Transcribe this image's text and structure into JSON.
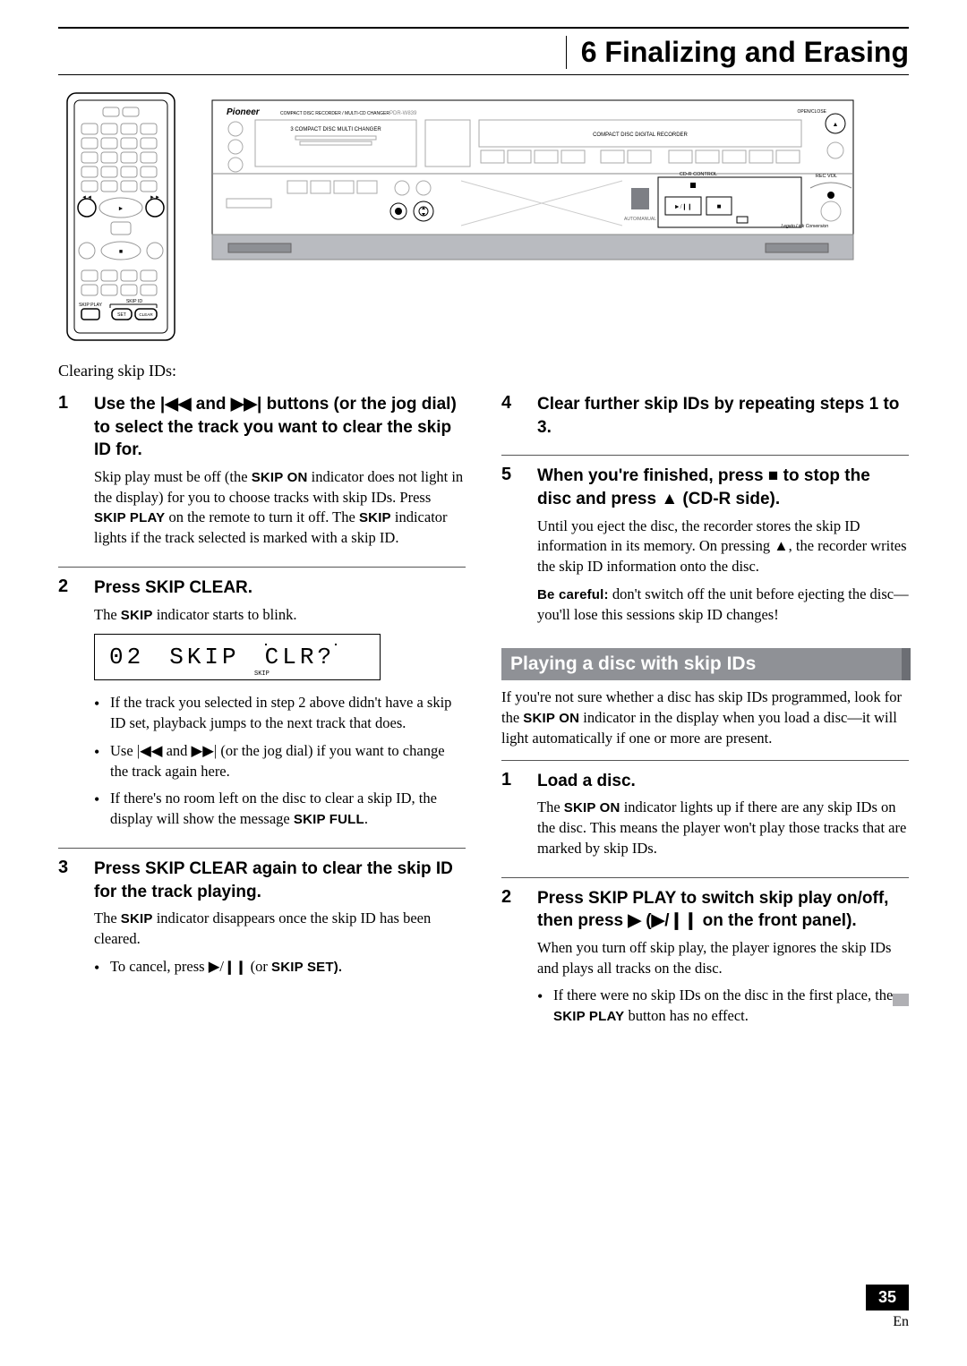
{
  "chapter": {
    "number": "6",
    "title": "Finalizing and Erasing"
  },
  "intro": "Clearing skip IDs:",
  "remote_labels": {
    "skip_play": "SKIP PLAY",
    "skip_id": "SKIP ID",
    "set": "SET",
    "clear": "CLEAR",
    "prev": "◄◄",
    "next": "►►"
  },
  "panel_labels": {
    "brand": "Pioneer",
    "subtitle": "COMPACT DISC RECORDER / MULTI-CD CHANGER",
    "model": "PDR-W839",
    "changer": "3 COMPACT DISC MULTI CHANGER",
    "recorder": "COMPACT DISC DIGITAL RECORDER",
    "open_close": "OPEN/CLOSE",
    "cdr_control": "CD-R CONTROL",
    "rec_vol": "REC VOL",
    "legato": "Legato Link Conversion",
    "auto": "AUTO/MANUAL",
    "play": "►/❙❙",
    "stop": "■"
  },
  "lcd": {
    "track": "02",
    "label": "SKIP",
    "action": "CLR?",
    "skip_ind": "SKIP"
  },
  "left_steps": [
    {
      "num": "1",
      "title_parts": [
        "Use the ",
        "|◀◀",
        " and ",
        "▶▶|",
        " buttons (or the jog dial) to select  the track you want to clear the skip ID for."
      ],
      "body": [
        "Skip play must be off (the <b>SKIP ON</b> indicator does not light in the display) for you to choose tracks with skip IDs. Press <b>SKIP PLAY</b> on the remote to turn it off.  The <b>SKIP</b> indicator lights if the track selected is marked with a skip ID."
      ]
    },
    {
      "num": "2",
      "title_parts": [
        "Press SKIP CLEAR."
      ],
      "body": [
        "The <b>SKIP</b> indicator starts to blink."
      ],
      "lcd": true,
      "bullets": [
        "If the track you selected in step 2 above didn't have a skip ID set, playback jumps to the next track that does.",
        "Use |◀◀ and ▶▶| (or the jog dial) if you want to change the track again here.",
        "If there's no room left on the disc to clear a skip ID, the display will show the message <b>SKIP FULL</b>."
      ]
    },
    {
      "num": "3",
      "title_parts": [
        "Press SKIP CLEAR again to clear the skip ID for the track playing."
      ],
      "body": [
        "The <b>SKIP</b> indicator disappears once the skip ID has been cleared."
      ],
      "bullets": [
        "To cancel, press ▶/<b>❙❙</b> (or <b>SKIP SET).</b>"
      ]
    }
  ],
  "right_steps_top": [
    {
      "num": "4",
      "title_parts": [
        "Clear further skip IDs by repeating steps 1 to 3."
      ]
    },
    {
      "num": "5",
      "title_parts": [
        "When you're finished, press ",
        "■",
        " to stop the disc and press ",
        "▲",
        " (CD-R side)."
      ],
      "body": [
        "Until you eject the disc, the recorder stores the skip ID information in its memory. On pressing ▲, the recorder writes the skip ID information onto the disc.",
        "<b>Be careful:</b> don't switch off the unit before ejecting the disc—you'll lose this sessions skip ID changes!"
      ]
    }
  ],
  "section_banner": "Playing a disc with skip IDs",
  "section_intro": "If you're not sure whether a disc has skip IDs programmed, look for the <b>SKIP ON</b> indicator in the display when you load a disc—it will light automatically if one or more are present.",
  "right_steps_bottom": [
    {
      "num": "1",
      "title_parts": [
        "Load a disc."
      ],
      "body": [
        "The <b>SKIP ON</b> indicator lights up if there are any skip IDs on the disc. This means the player won't play those tracks that are marked by skip IDs."
      ]
    },
    {
      "num": "2",
      "title_parts": [
        "Press SKIP PLAY to switch skip play on/off, then press ",
        "▶",
        " (",
        "▶",
        "/",
        "❙❙",
        " on the front panel)."
      ],
      "body": [
        "When you turn off skip play, the player ignores the skip IDs and plays all tracks on the disc."
      ],
      "bullets": [
        "If there were no skip IDs on the disc in the first place, the <b>SKIP PLAY</b> button has no effect."
      ]
    }
  ],
  "page": {
    "number": "35",
    "lang": "En"
  },
  "colors": {
    "banner_bg": "#8f9196",
    "tab_bg": "#b0b0b4",
    "page_num_bg": "#000000",
    "text": "#000000"
  },
  "fonts": {
    "heading": "Arial",
    "body": "Georgia",
    "lcd": "Courier New"
  }
}
